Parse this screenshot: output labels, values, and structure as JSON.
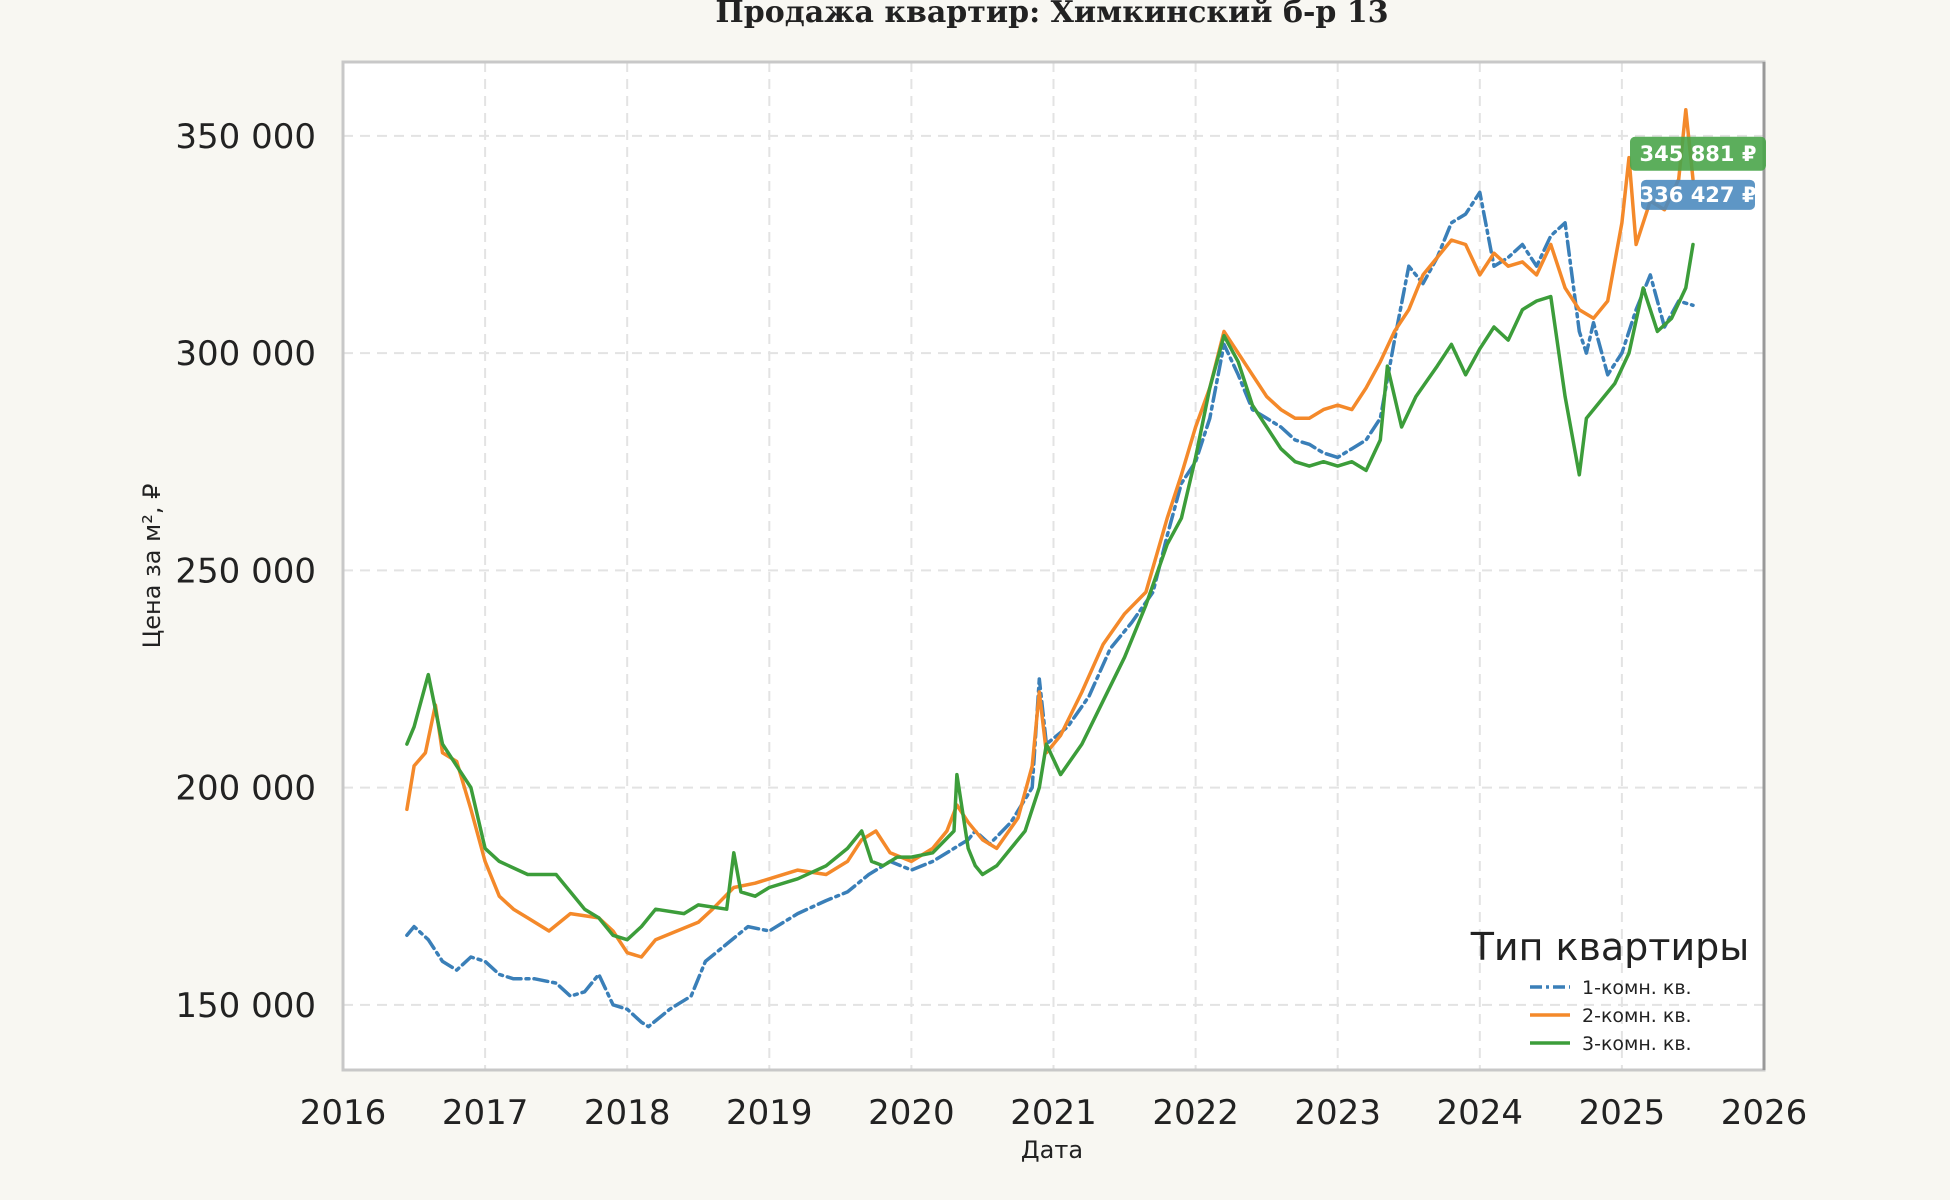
{
  "chart_data": {
    "type": "line",
    "title": "Продажа квартир: Химкинский б-р 13",
    "xlabel": "Дата",
    "ylabel": "Цена за м², ₽",
    "xlim": [
      2016.0,
      2026.0
    ],
    "ylim": [
      135000,
      367000
    ],
    "x_ticks": [
      2016,
      2017,
      2018,
      2019,
      2020,
      2021,
      2022,
      2023,
      2024,
      2025,
      2026
    ],
    "x_tick_labels": [
      "2016",
      "2017",
      "2018",
      "2019",
      "2020",
      "2021",
      "2022",
      "2023",
      "2024",
      "2025",
      "2026"
    ],
    "y_ticks": [
      150000,
      200000,
      250000,
      300000,
      350000
    ],
    "y_tick_labels": [
      "150 000",
      "200 000",
      "250 000",
      "300 000",
      "350 000"
    ],
    "grid": true,
    "legend": {
      "title": "Тип квартиры",
      "position": "bottom-right"
    },
    "series": [
      {
        "name": "1-комн. кв.",
        "color": "#3a7fb8",
        "dash": "dashdot",
        "x": [
          2016.45,
          2016.5,
          2016.6,
          2016.7,
          2016.8,
          2016.9,
          2017.0,
          2017.1,
          2017.2,
          2017.35,
          2017.5,
          2017.6,
          2017.7,
          2017.8,
          2017.9,
          2018.0,
          2018.1,
          2018.15,
          2018.3,
          2018.45,
          2018.55,
          2018.7,
          2018.85,
          2019.0,
          2019.2,
          2019.4,
          2019.55,
          2019.7,
          2019.85,
          2020.0,
          2020.15,
          2020.3,
          2020.4,
          2020.45,
          2020.55,
          2020.7,
          2020.85,
          2020.9,
          2020.95,
          2021.1,
          2021.25,
          2021.4,
          2021.55,
          2021.7,
          2021.8,
          2021.9,
          2022.0,
          2022.1,
          2022.2,
          2022.3,
          2022.4,
          2022.5,
          2022.6,
          2022.7,
          2022.8,
          2022.9,
          2023.0,
          2023.1,
          2023.2,
          2023.3,
          2023.4,
          2023.5,
          2023.6,
          2023.7,
          2023.8,
          2023.9,
          2024.0,
          2024.1,
          2024.2,
          2024.3,
          2024.4,
          2024.5,
          2024.6,
          2024.7,
          2024.75,
          2024.8,
          2024.9,
          2025.0,
          2025.1,
          2025.2,
          2025.3,
          2025.4,
          2025.5
        ],
        "y": [
          166000,
          168000,
          165000,
          160000,
          158000,
          161000,
          160000,
          157000,
          156000,
          156000,
          155000,
          152000,
          153000,
          157000,
          150000,
          149000,
          146000,
          145000,
          149000,
          152000,
          160000,
          164000,
          168000,
          167000,
          171000,
          174000,
          176000,
          180000,
          183000,
          181000,
          183000,
          186000,
          188000,
          190000,
          187000,
          192000,
          200000,
          225000,
          210000,
          214000,
          221000,
          232000,
          238000,
          245000,
          258000,
          270000,
          275000,
          285000,
          302000,
          295000,
          287000,
          285000,
          283000,
          280000,
          279000,
          277000,
          276000,
          278000,
          280000,
          285000,
          303000,
          320000,
          316000,
          322000,
          330000,
          332000,
          337000,
          320000,
          322000,
          325000,
          320000,
          327000,
          330000,
          305000,
          300000,
          307000,
          295000,
          300000,
          310000,
          318000,
          306000,
          312000,
          311000
        ]
      },
      {
        "name": "2-комн. кв.",
        "color": "#f4892a",
        "dash": "solid",
        "x": [
          2016.45,
          2016.5,
          2016.58,
          2016.65,
          2016.7,
          2016.8,
          2016.9,
          2017.0,
          2017.1,
          2017.2,
          2017.3,
          2017.45,
          2017.6,
          2017.8,
          2017.9,
          2018.0,
          2018.1,
          2018.2,
          2018.35,
          2018.5,
          2018.6,
          2018.75,
          2018.9,
          2019.0,
          2019.2,
          2019.4,
          2019.55,
          2019.65,
          2019.75,
          2019.85,
          2020.0,
          2020.15,
          2020.25,
          2020.32,
          2020.4,
          2020.5,
          2020.6,
          2020.75,
          2020.85,
          2020.9,
          2020.95,
          2021.05,
          2021.2,
          2021.35,
          2021.5,
          2021.65,
          2021.8,
          2021.9,
          2022.0,
          2022.1,
          2022.2,
          2022.3,
          2022.4,
          2022.5,
          2022.6,
          2022.7,
          2022.8,
          2022.9,
          2023.0,
          2023.1,
          2023.2,
          2023.3,
          2023.4,
          2023.5,
          2023.6,
          2023.7,
          2023.8,
          2023.9,
          2024.0,
          2024.1,
          2024.2,
          2024.3,
          2024.4,
          2024.5,
          2024.6,
          2024.7,
          2024.8,
          2024.9,
          2025.0,
          2025.05,
          2025.1,
          2025.2,
          2025.3,
          2025.4,
          2025.45,
          2025.5
        ],
        "y": [
          195000,
          205000,
          208000,
          219000,
          208000,
          206000,
          195000,
          183000,
          175000,
          172000,
          170000,
          167000,
          171000,
          170000,
          167000,
          162000,
          161000,
          165000,
          167000,
          169000,
          172000,
          177000,
          178000,
          179000,
          181000,
          180000,
          183000,
          188000,
          190000,
          185000,
          183000,
          186000,
          190000,
          196000,
          192000,
          188000,
          186000,
          193000,
          205000,
          222000,
          208000,
          212000,
          222000,
          233000,
          240000,
          245000,
          262000,
          272000,
          283000,
          292000,
          305000,
          300000,
          295000,
          290000,
          287000,
          285000,
          285000,
          287000,
          288000,
          287000,
          292000,
          298000,
          305000,
          310000,
          318000,
          322000,
          326000,
          325000,
          318000,
          323000,
          320000,
          321000,
          318000,
          325000,
          315000,
          310000,
          308000,
          312000,
          330000,
          345000,
          325000,
          335000,
          333000,
          340000,
          356000,
          340000
        ]
      },
      {
        "name": "3-комн. кв.",
        "color": "#3c9d3a",
        "dash": "solid",
        "x": [
          2016.45,
          2016.5,
          2016.55,
          2016.6,
          2016.65,
          2016.7,
          2016.8,
          2016.9,
          2017.0,
          2017.1,
          2017.3,
          2017.5,
          2017.6,
          2017.7,
          2017.8,
          2017.9,
          2018.0,
          2018.1,
          2018.2,
          2018.4,
          2018.5,
          2018.7,
          2018.75,
          2018.8,
          2018.9,
          2019.0,
          2019.2,
          2019.4,
          2019.55,
          2019.65,
          2019.72,
          2019.8,
          2019.9,
          2020.0,
          2020.15,
          2020.3,
          2020.32,
          2020.4,
          2020.45,
          2020.5,
          2020.6,
          2020.7,
          2020.8,
          2020.9,
          2020.95,
          2021.05,
          2021.2,
          2021.35,
          2021.5,
          2021.65,
          2021.8,
          2021.9,
          2022.0,
          2022.1,
          2022.2,
          2022.3,
          2022.4,
          2022.5,
          2022.6,
          2022.7,
          2022.8,
          2022.9,
          2023.0,
          2023.1,
          2023.2,
          2023.3,
          2023.35,
          2023.45,
          2023.55,
          2023.7,
          2023.8,
          2023.9,
          2024.0,
          2024.1,
          2024.2,
          2024.3,
          2024.4,
          2024.5,
          2024.6,
          2024.7,
          2024.75,
          2024.85,
          2024.95,
          2025.05,
          2025.15,
          2025.25,
          2025.35,
          2025.45,
          2025.5
        ],
        "y": [
          210000,
          214000,
          220000,
          226000,
          218000,
          210000,
          205000,
          200000,
          186000,
          183000,
          180000,
          180000,
          176000,
          172000,
          170000,
          166000,
          165000,
          168000,
          172000,
          171000,
          173000,
          172000,
          185000,
          176000,
          175000,
          177000,
          179000,
          182000,
          186000,
          190000,
          183000,
          182000,
          184000,
          184000,
          185000,
          190000,
          203000,
          186000,
          182000,
          180000,
          182000,
          186000,
          190000,
          200000,
          210000,
          203000,
          210000,
          220000,
          230000,
          242000,
          256000,
          262000,
          276000,
          292000,
          304000,
          298000,
          288000,
          283000,
          278000,
          275000,
          274000,
          275000,
          274000,
          275000,
          273000,
          280000,
          297000,
          283000,
          290000,
          297000,
          302000,
          295000,
          301000,
          306000,
          303000,
          310000,
          312000,
          313000,
          290000,
          272000,
          285000,
          289000,
          293000,
          300000,
          315000,
          305000,
          308000,
          315000,
          325000
        ]
      }
    ],
    "annotations": [
      {
        "text": "345 881 ₽",
        "x": 2025.5,
        "y": 345881,
        "color": "#4aa54a"
      },
      {
        "text": "336 427 ₽",
        "x": 2025.5,
        "y": 336427,
        "color": "#4c8bbf"
      }
    ]
  }
}
